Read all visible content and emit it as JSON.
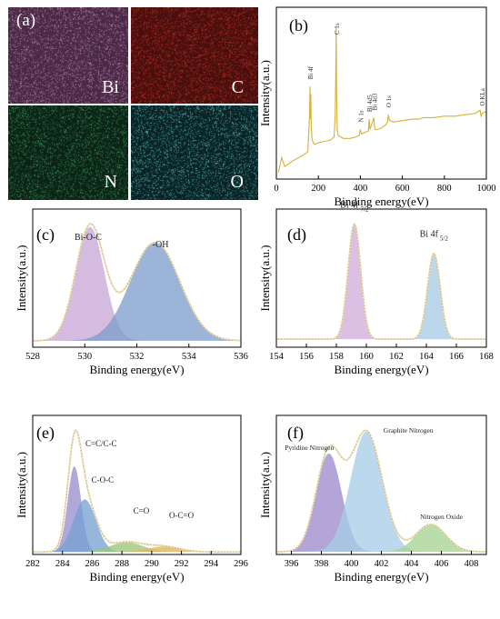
{
  "maps": {
    "panel_label": "(a)",
    "tiles": [
      {
        "element": "Bi",
        "color": "#4a2a45",
        "speck": "#c98ac0"
      },
      {
        "element": "C",
        "color": "#4a0f0d",
        "speck": "#d0382e"
      },
      {
        "element": "N",
        "color": "#0c2416",
        "speck": "#3fa262"
      },
      {
        "element": "O",
        "color": "#0a2426",
        "speck": "#5cc2c6"
      }
    ]
  },
  "chart_data": [
    {
      "panel_label": "(b)",
      "type": "line",
      "xlabel": "Binding energy(eV)",
      "ylabel": "Intensity(a.u.)",
      "xlim": [
        0,
        1000
      ],
      "xticks": [
        0,
        200,
        400,
        600,
        800,
        1000
      ],
      "y_ticks_shown": false,
      "series": [
        {
          "color": "#d4b23a",
          "x": [
            10,
            25,
            40,
            80,
            120,
            150,
            158,
            160,
            162,
            164,
            166,
            170,
            180,
            200,
            230,
            260,
            275,
            280,
            283,
            285,
            287,
            290,
            295,
            305,
            320,
            350,
            380,
            395,
            400,
            405,
            420,
            438,
            442,
            446,
            455,
            464,
            468,
            472,
            480,
            500,
            520,
            530,
            533,
            540,
            560,
            600,
            650,
            680,
            700,
            750,
            800,
            850,
            900,
            950,
            970,
            975,
            980,
            1000
          ],
          "y": [
            2,
            12,
            6,
            10,
            13,
            16,
            40,
            60,
            38,
            55,
            34,
            24,
            21,
            22,
            23,
            24,
            26,
            40,
            70,
            100,
            52,
            30,
            27,
            26,
            25,
            25,
            26,
            27,
            31,
            28,
            29,
            30,
            38,
            31,
            35,
            39,
            32,
            31,
            31,
            32,
            34,
            36,
            41,
            37,
            36,
            37,
            38,
            38,
            39,
            39,
            40,
            40,
            41,
            42,
            44,
            40,
            42,
            43
          ]
        }
      ],
      "annotations": [
        {
          "text": "Bi 4f",
          "x": 160
        },
        {
          "text": "C 1s",
          "x": 285
        },
        {
          "text": "N 1s",
          "x": 400
        },
        {
          "text": "Bi 4d5",
          "x": 442
        },
        {
          "text": "Bi 4d3",
          "x": 466
        },
        {
          "text": "O 1s",
          "x": 532
        },
        {
          "text": "O KLa",
          "x": 978
        }
      ]
    },
    {
      "panel_label": "(c)",
      "type": "area",
      "xlabel": "Binding energy(eV)",
      "ylabel": "Intensity(a.u.)",
      "xlim": [
        528,
        536
      ],
      "xticks": [
        528,
        530,
        532,
        534,
        536
      ],
      "y_ticks_shown": false,
      "baseline": 0.05,
      "envelope_color": "#d9c48a",
      "peaks": [
        {
          "label": "Bi-O-C",
          "center": 530.2,
          "height": 0.88,
          "width": 0.55,
          "color": "#c8a8d6"
        },
        {
          "label": "-OH",
          "center": 532.7,
          "height": 0.76,
          "width": 0.95,
          "color": "#7f9fcc"
        }
      ]
    },
    {
      "panel_label": "(d)",
      "type": "area",
      "xlabel": "Binding energy(eV)",
      "ylabel": "Intensity(a.u.)",
      "xlim": [
        154,
        168
      ],
      "xticks": [
        154,
        156,
        158,
        160,
        162,
        164,
        166,
        168
      ],
      "y_ticks_shown": false,
      "baseline": 0.06,
      "envelope_color": "#d9c48a",
      "peaks": [
        {
          "label": "Bi 4f",
          "label_sub": "7/2",
          "center": 159.2,
          "height": 0.86,
          "width": 0.42,
          "color": "#d2aedd"
        },
        {
          "label": "Bi 4f",
          "label_sub": "5/2",
          "center": 164.5,
          "height": 0.64,
          "width": 0.42,
          "color": "#a9cce6"
        }
      ]
    },
    {
      "panel_label": "(e)",
      "type": "area",
      "xlabel": "Binding energy(eV)",
      "ylabel": "Intensity(a.u.)",
      "xlim": [
        282,
        296
      ],
      "xticks": [
        282,
        284,
        286,
        288,
        290,
        292,
        294,
        296
      ],
      "y_ticks_shown": false,
      "baseline": 0.02,
      "envelope_color": "#d9c48a",
      "peaks": [
        {
          "label": "C=C/C-C",
          "center": 284.8,
          "height": 0.7,
          "width": 0.45,
          "color": "#9b8fcf"
        },
        {
          "label": "C-O-C",
          "center": 285.5,
          "height": 0.43,
          "width": 0.75,
          "color": "#7aa2d2"
        },
        {
          "label": "C=O",
          "center": 288.3,
          "height": 0.08,
          "width": 1.1,
          "color": "#9cc77a"
        },
        {
          "label": "O-C=O",
          "center": 290.8,
          "height": 0.045,
          "width": 1.1,
          "color": "#e0b35a"
        }
      ]
    },
    {
      "panel_label": "(f)",
      "type": "area",
      "xlabel": "Binding energy(eV)",
      "ylabel": "Intensity(a.u.)",
      "xlim": [
        395,
        409
      ],
      "xticks": [
        396,
        398,
        400,
        402,
        404,
        406,
        408
      ],
      "y_ticks_shown": false,
      "baseline": 0.02,
      "envelope_color": "#d9c48a",
      "peaks": [
        {
          "label": "Pyridine Nitrogen",
          "center": 398.5,
          "height": 0.72,
          "width": 0.85,
          "color": "#9e8ccd"
        },
        {
          "label": "Graphite Nitrogen",
          "center": 401.0,
          "height": 0.88,
          "width": 1.05,
          "color": "#a9cde8"
        },
        {
          "label": "Nitrogen Oxide",
          "center": 405.3,
          "height": 0.2,
          "width": 1.0,
          "color": "#a6d393"
        }
      ]
    }
  ]
}
